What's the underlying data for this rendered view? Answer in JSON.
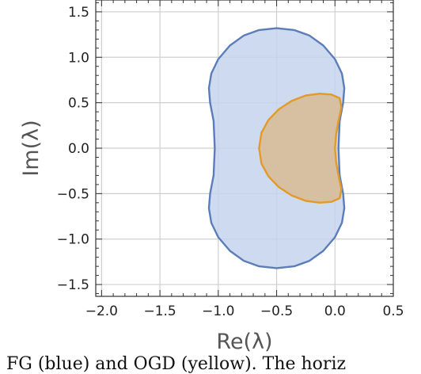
{
  "chart_data": {
    "type": "area",
    "xlabel": "Re(λ)",
    "ylabel": "Im(λ)",
    "xlim": [
      -2.05,
      0.5
    ],
    "ylim": [
      -1.63,
      1.63
    ],
    "grid": true,
    "xticks": [
      "−2.0",
      "−1.5",
      "−1.0",
      "−0.5",
      "0.0",
      "0.5"
    ],
    "xtick_values": [
      -2.0,
      -1.5,
      -1.0,
      -0.5,
      0.0,
      0.5
    ],
    "yticks": [
      "1.5",
      "1.0",
      "0.5",
      "0.0",
      "−0.5",
      "−1.0",
      "−1.5"
    ],
    "ytick_values": [
      1.5,
      1.0,
      0.5,
      0.0,
      -0.5,
      -1.0,
      -1.5
    ],
    "series": [
      {
        "stroke": "#5b7db8",
        "fill": "#c6d3ec",
        "points": [
          [
            -0.5,
            1.32
          ],
          [
            -0.35,
            1.3
          ],
          [
            -0.22,
            1.24
          ],
          [
            -0.1,
            1.13
          ],
          [
            0.0,
            0.98
          ],
          [
            0.06,
            0.82
          ],
          [
            0.08,
            0.66
          ],
          [
            0.07,
            0.5
          ],
          [
            0.04,
            0.3
          ],
          [
            0.03,
            0.0
          ],
          [
            0.04,
            -0.3
          ],
          [
            0.07,
            -0.5
          ],
          [
            0.08,
            -0.66
          ],
          [
            0.06,
            -0.82
          ],
          [
            0.0,
            -0.98
          ],
          [
            -0.1,
            -1.13
          ],
          [
            -0.22,
            -1.24
          ],
          [
            -0.35,
            -1.3
          ],
          [
            -0.5,
            -1.32
          ],
          [
            -0.65,
            -1.3
          ],
          [
            -0.78,
            -1.24
          ],
          [
            -0.9,
            -1.13
          ],
          [
            -1.0,
            -0.98
          ],
          [
            -1.06,
            -0.82
          ],
          [
            -1.08,
            -0.66
          ],
          [
            -1.07,
            -0.5
          ],
          [
            -1.04,
            -0.3
          ],
          [
            -1.03,
            0.0
          ],
          [
            -1.04,
            0.3
          ],
          [
            -1.07,
            0.5
          ],
          [
            -1.08,
            0.66
          ],
          [
            -1.06,
            0.82
          ],
          [
            -1.0,
            0.98
          ],
          [
            -0.9,
            1.13
          ],
          [
            -0.78,
            1.24
          ],
          [
            -0.65,
            1.3
          ]
        ]
      },
      {
        "stroke": "#e39a28",
        "fill": "#d7bb93",
        "points": [
          [
            -0.13,
            0.6
          ],
          [
            -0.03,
            0.59
          ],
          [
            0.04,
            0.55
          ],
          [
            0.055,
            0.45
          ],
          [
            0.03,
            0.3
          ],
          [
            0.01,
            0.15
          ],
          [
            0.0,
            0.0
          ],
          [
            0.01,
            -0.15
          ],
          [
            0.03,
            -0.3
          ],
          [
            0.055,
            -0.45
          ],
          [
            0.04,
            -0.55
          ],
          [
            -0.03,
            -0.59
          ],
          [
            -0.13,
            -0.6
          ],
          [
            -0.25,
            -0.58
          ],
          [
            -0.37,
            -0.52
          ],
          [
            -0.48,
            -0.43
          ],
          [
            -0.57,
            -0.31
          ],
          [
            -0.63,
            -0.17
          ],
          [
            -0.65,
            0.0
          ],
          [
            -0.63,
            0.17
          ],
          [
            -0.57,
            0.31
          ],
          [
            -0.48,
            0.43
          ],
          [
            -0.37,
            0.52
          ],
          [
            -0.25,
            0.58
          ]
        ]
      }
    ]
  },
  "caption": {
    "text": "FG (blue) and OGD (yellow). The horiz"
  }
}
